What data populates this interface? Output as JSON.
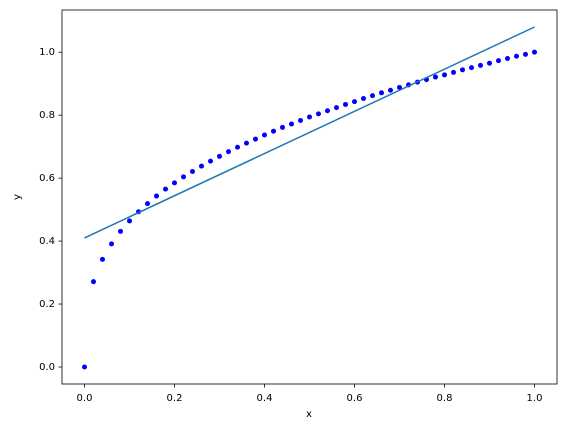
{
  "chart_data": {
    "type": "scatter",
    "xlabel": "x",
    "ylabel": "y",
    "xlim": [
      -0.05,
      1.05
    ],
    "ylim": [
      -0.054,
      1.134
    ],
    "xticks": [
      {
        "value": 0,
        "label": "0.0"
      },
      0.2,
      0.4,
      0.6,
      0.8,
      {
        "value": 1,
        "label": "1.0"
      }
    ],
    "yticks": [
      {
        "value": 0,
        "label": "0.0"
      },
      0.2,
      0.4,
      0.6,
      0.8,
      {
        "value": 1,
        "label": "1.0"
      }
    ],
    "grid": false,
    "series": [
      {
        "type": "scatter",
        "color": "#0000ff",
        "x": [
          0,
          0.02,
          0.04,
          0.06,
          0.08,
          0.1,
          0.12,
          0.14,
          0.16,
          0.18,
          0.2,
          0.22,
          0.24,
          0.26,
          0.28,
          0.3,
          0.32,
          0.34,
          0.36,
          0.38,
          0.4,
          0.42,
          0.44,
          0.46,
          0.48,
          0.5,
          0.52,
          0.54,
          0.56,
          0.58,
          0.6,
          0.62,
          0.64,
          0.66,
          0.68,
          0.7,
          0.72,
          0.74,
          0.76,
          0.78,
          0.8,
          0.82,
          0.84,
          0.86,
          0.88,
          0.9,
          0.92,
          0.94,
          0.96,
          0.98,
          1
        ],
        "values": [
          0,
          0.271,
          0.342,
          0.391,
          0.431,
          0.464,
          0.493,
          0.519,
          0.543,
          0.565,
          0.585,
          0.604,
          0.621,
          0.638,
          0.654,
          0.669,
          0.684,
          0.698,
          0.711,
          0.724,
          0.737,
          0.749,
          0.761,
          0.772,
          0.783,
          0.794,
          0.804,
          0.814,
          0.824,
          0.834,
          0.843,
          0.853,
          0.862,
          0.871,
          0.879,
          0.888,
          0.896,
          0.905,
          0.913,
          0.921,
          0.928,
          0.936,
          0.944,
          0.951,
          0.958,
          0.965,
          0.973,
          0.98,
          0.987,
          0.993,
          1
        ]
      },
      {
        "type": "line",
        "color": "#1f77b4",
        "x": [
          0,
          1
        ],
        "values": [
          0.41,
          1.08
        ]
      }
    ]
  }
}
